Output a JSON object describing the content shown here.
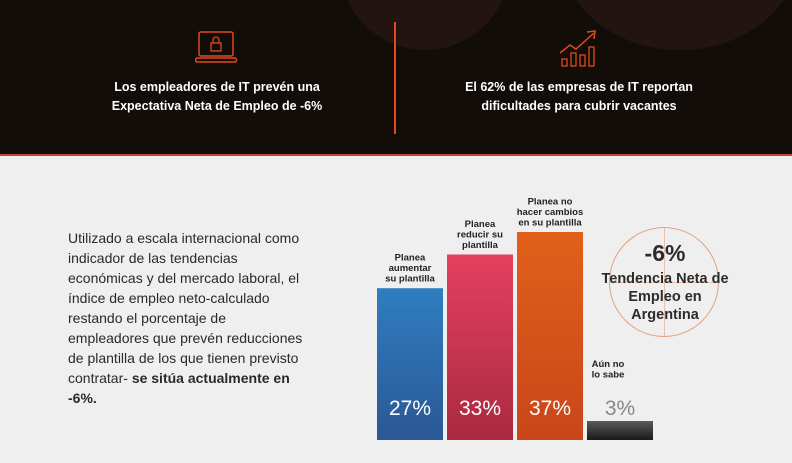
{
  "header": {
    "stat_left": "Los empleadores de IT prevén una Expectativa Neta de Empleo de -6%",
    "stat_right": "El 62% de las empresas de IT reportan dificultades para cubrir vacantes",
    "icon_left": "laptop-lock-icon",
    "icon_right": "growth-chart-icon"
  },
  "intro": {
    "text": "Utilizado a escala internacional como indicador de las tendencias económicas y del mercado laboral, el índice de empleo neto-calculado restando el porcentaje de empleadores que prevén reducciones de plantilla de los que tienen previsto contratar-",
    "bold": "se sitúa actualmente en -6%."
  },
  "net": {
    "value": "-6%",
    "label": "Tendencia Neta de Empleo en Argentina"
  },
  "colors": {
    "accent": "#e04a1c",
    "bar_blue": "#2f7ec0",
    "bar_red": "#c93550",
    "bar_orange": "#e1601a",
    "bar_gray": "#333333"
  },
  "chart_data": {
    "type": "bar",
    "categories": [
      "Planea aumentar su plantilla",
      "Planea reducir su plantilla",
      "Planea no hacer cambios en su plantilla",
      "Aún no lo sabe"
    ],
    "category_lines": [
      [
        "Planea",
        "aumentar",
        "su plantilla"
      ],
      [
        "Planea",
        "reducir su",
        "plantilla"
      ],
      [
        "Planea no",
        "hacer cambios",
        "en su plantilla"
      ],
      [
        "Aún no",
        "lo sabe"
      ]
    ],
    "values": [
      27,
      33,
      37,
      3
    ],
    "value_labels": [
      "27%",
      "33%",
      "37%",
      "3%"
    ],
    "ylim": [
      0,
      37
    ]
  }
}
